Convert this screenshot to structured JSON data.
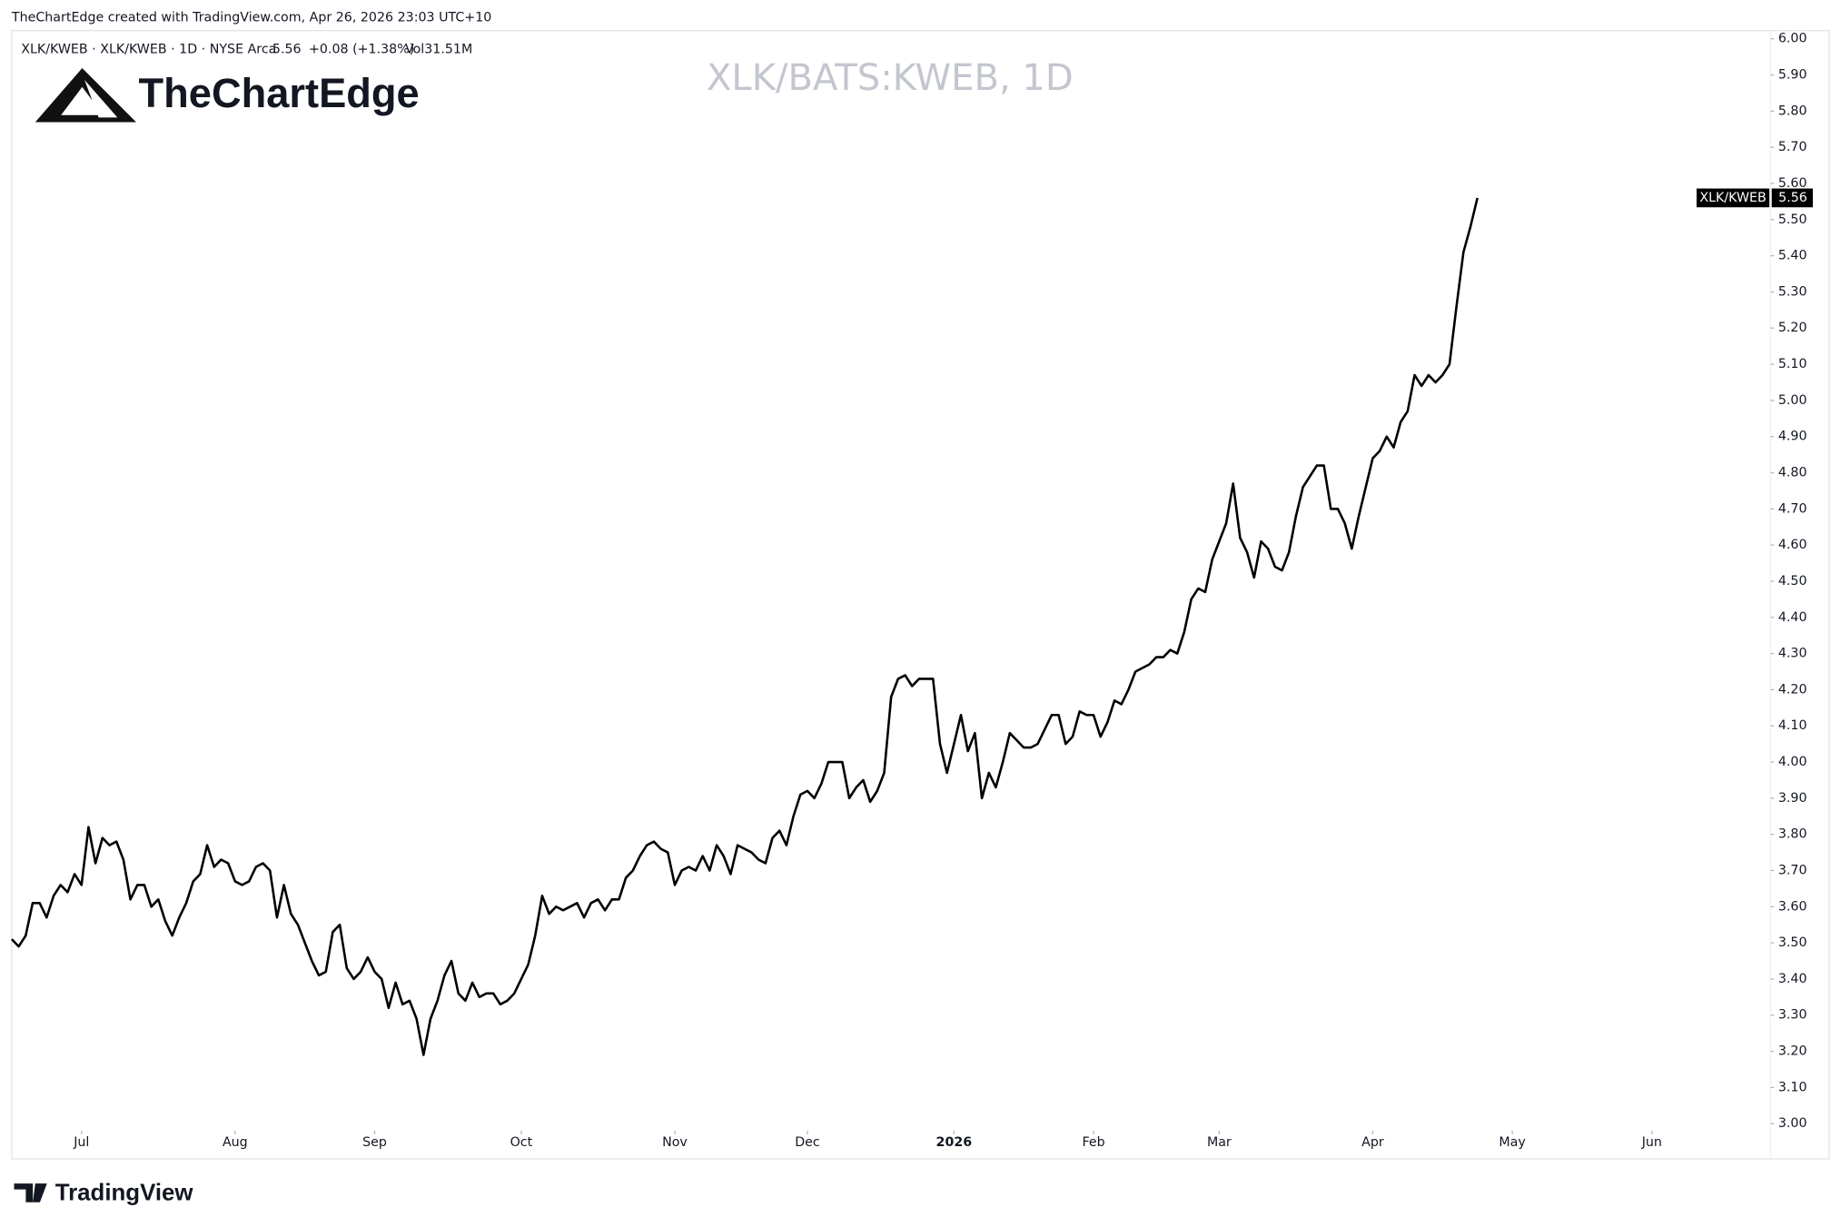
{
  "header": {
    "attribution": "TheChartEdge created with TradingView.com, Apr 26, 2026 23:03 UTC+10",
    "legend_info": "XLK/KWEB · XLK/KWEB · 1D · NYSE Arca",
    "last_price": "5.56",
    "change": "+0.08 (+1.38%)",
    "volume": "Vol31.51M",
    "brand": "TheChartEdge"
  },
  "footer": {
    "brand": "TradingView"
  },
  "chart_data": {
    "type": "line",
    "title": "XLK/BATS:KWEB, 1D",
    "series": [
      {
        "name": "XLK/KWEB",
        "color": "#000000",
        "values": [
          3.51,
          3.49,
          3.52,
          3.61,
          3.61,
          3.57,
          3.63,
          3.66,
          3.64,
          3.69,
          3.66,
          3.82,
          3.72,
          3.79,
          3.77,
          3.78,
          3.73,
          3.62,
          3.66,
          3.66,
          3.6,
          3.62,
          3.56,
          3.52,
          3.57,
          3.61,
          3.67,
          3.69,
          3.77,
          3.71,
          3.73,
          3.72,
          3.67,
          3.66,
          3.67,
          3.71,
          3.72,
          3.7,
          3.57,
          3.66,
          3.58,
          3.55,
          3.5,
          3.45,
          3.41,
          3.42,
          3.53,
          3.55,
          3.43,
          3.4,
          3.42,
          3.46,
          3.42,
          3.4,
          3.32,
          3.39,
          3.33,
          3.34,
          3.29,
          3.19,
          3.29,
          3.34,
          3.41,
          3.45,
          3.36,
          3.34,
          3.39,
          3.35,
          3.36,
          3.36,
          3.33,
          3.34,
          3.36,
          3.4,
          3.44,
          3.52,
          3.63,
          3.58,
          3.6,
          3.59,
          3.6,
          3.61,
          3.57,
          3.61,
          3.62,
          3.59,
          3.62,
          3.62,
          3.68,
          3.7,
          3.74,
          3.77,
          3.78,
          3.76,
          3.75,
          3.66,
          3.7,
          3.71,
          3.7,
          3.74,
          3.7,
          3.77,
          3.74,
          3.69,
          3.77,
          3.76,
          3.75,
          3.73,
          3.72,
          3.79,
          3.81,
          3.77,
          3.85,
          3.91,
          3.92,
          3.9,
          3.94,
          4.0,
          4.0,
          4.0,
          3.9,
          3.93,
          3.95,
          3.89,
          3.92,
          3.97,
          4.18,
          4.23,
          4.24,
          4.21,
          4.23,
          4.23,
          4.23,
          4.05,
          3.97,
          4.05,
          4.13,
          4.03,
          4.08,
          3.9,
          3.97,
          3.93,
          4.0,
          4.08,
          4.06,
          4.04,
          4.04,
          4.05,
          4.09,
          4.13,
          4.13,
          4.05,
          4.07,
          4.14,
          4.13,
          4.13,
          4.07,
          4.11,
          4.17,
          4.16,
          4.2,
          4.25,
          4.26,
          4.27,
          4.29,
          4.29,
          4.31,
          4.3,
          4.36,
          4.45,
          4.48,
          4.47,
          4.56,
          4.61,
          4.66,
          4.77,
          4.62,
          4.58,
          4.51,
          4.61,
          4.59,
          4.54,
          4.53,
          4.58,
          4.68,
          4.76,
          4.79,
          4.82,
          4.82,
          4.7,
          4.7,
          4.66,
          4.59,
          4.68,
          4.76,
          4.84,
          4.86,
          4.9,
          4.87,
          4.94,
          4.97,
          5.07,
          5.04,
          5.07,
          5.05,
          5.07,
          5.1,
          5.26,
          5.41,
          5.48,
          5.56
        ]
      }
    ],
    "xlim": [
      0,
      252
    ],
    "xticks": [
      {
        "value": 10,
        "label": "Jul"
      },
      {
        "value": 32,
        "label": "Aug"
      },
      {
        "value": 52,
        "label": "Sep"
      },
      {
        "value": 73,
        "label": "Oct"
      },
      {
        "value": 95,
        "label": "Nov"
      },
      {
        "value": 114,
        "label": "Dec"
      },
      {
        "value": 135,
        "label": "2026"
      },
      {
        "value": 155,
        "label": "Feb"
      },
      {
        "value": 173,
        "label": "Mar"
      },
      {
        "value": 195,
        "label": "Apr"
      },
      {
        "value": 215,
        "label": "May"
      },
      {
        "value": 235,
        "label": "Jun"
      }
    ],
    "ylim": [
      3.0,
      6.0
    ],
    "yticks": [
      {
        "value": 3.0,
        "label": "3.00"
      },
      {
        "value": 3.1,
        "label": "3.10"
      },
      {
        "value": 3.2,
        "label": "3.20"
      },
      {
        "value": 3.3,
        "label": "3.30"
      },
      {
        "value": 3.4,
        "label": "3.40"
      },
      {
        "value": 3.5,
        "label": "3.50"
      },
      {
        "value": 3.6,
        "label": "3.60"
      },
      {
        "value": 3.7,
        "label": "3.70"
      },
      {
        "value": 3.8,
        "label": "3.80"
      },
      {
        "value": 3.9,
        "label": "3.90"
      },
      {
        "value": 4.0,
        "label": "4.00"
      },
      {
        "value": 4.1,
        "label": "4.10"
      },
      {
        "value": 4.2,
        "label": "4.20"
      },
      {
        "value": 4.3,
        "label": "4.30"
      },
      {
        "value": 4.4,
        "label": "4.40"
      },
      {
        "value": 4.5,
        "label": "4.50"
      },
      {
        "value": 4.6,
        "label": "4.60"
      },
      {
        "value": 4.7,
        "label": "4.70"
      },
      {
        "value": 4.8,
        "label": "4.80"
      },
      {
        "value": 4.9,
        "label": "4.90"
      },
      {
        "value": 5.0,
        "label": "5.00"
      },
      {
        "value": 5.1,
        "label": "5.10"
      },
      {
        "value": 5.2,
        "label": "5.20"
      },
      {
        "value": 5.3,
        "label": "5.30"
      },
      {
        "value": 5.4,
        "label": "5.40"
      },
      {
        "value": 5.5,
        "label": "5.50"
      },
      {
        "value": 5.6,
        "label": "5.60"
      },
      {
        "value": 5.7,
        "label": "5.70"
      },
      {
        "value": 5.8,
        "label": "5.80"
      },
      {
        "value": 5.9,
        "label": "5.90"
      },
      {
        "value": 6.0,
        "label": "6.00"
      }
    ],
    "grid": false,
    "bold_xtick": "2026"
  }
}
